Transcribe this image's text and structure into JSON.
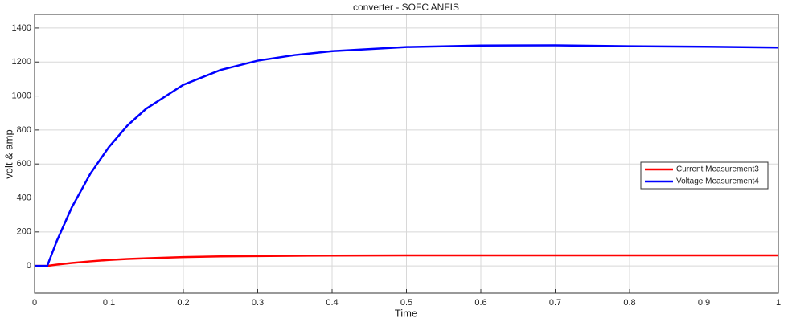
{
  "chart_data": {
    "type": "line",
    "title": "converter - SOFC ANFIS",
    "x_label": "Time",
    "y_label": "volt & amp",
    "x": [
      0,
      0.017,
      0.03,
      0.05,
      0.075,
      0.1,
      0.125,
      0.15,
      0.2,
      0.25,
      0.3,
      0.35,
      0.4,
      0.5,
      0.6,
      0.7,
      0.8,
      0.9,
      1.0
    ],
    "series": [
      {
        "name": "Current Measurement3",
        "color": "#ff0000",
        "values": [
          0,
          0,
          8,
          17,
          27,
          35,
          41,
          45,
          52,
          56,
          58,
          60,
          61,
          62,
          62,
          62,
          62,
          62,
          62
        ]
      },
      {
        "name": "Voltage Measurement4",
        "color": "#0000ff",
        "values": [
          0,
          0,
          148,
          344,
          543,
          700,
          827,
          925,
          1066,
          1153,
          1208,
          1241,
          1264,
          1288,
          1297,
          1298,
          1293,
          1290,
          1285
        ]
      }
    ],
    "xlim": [
      0,
      1
    ],
    "xticks": [
      0,
      0.1,
      0.2,
      0.3,
      0.4,
      0.5,
      0.6,
      0.7,
      0.8,
      0.9,
      1
    ],
    "ylim": [
      -160,
      1480
    ],
    "yticks": [
      0,
      200,
      400,
      600,
      800,
      1000,
      1200,
      1400
    ],
    "grid": true,
    "legend_position": "right"
  }
}
